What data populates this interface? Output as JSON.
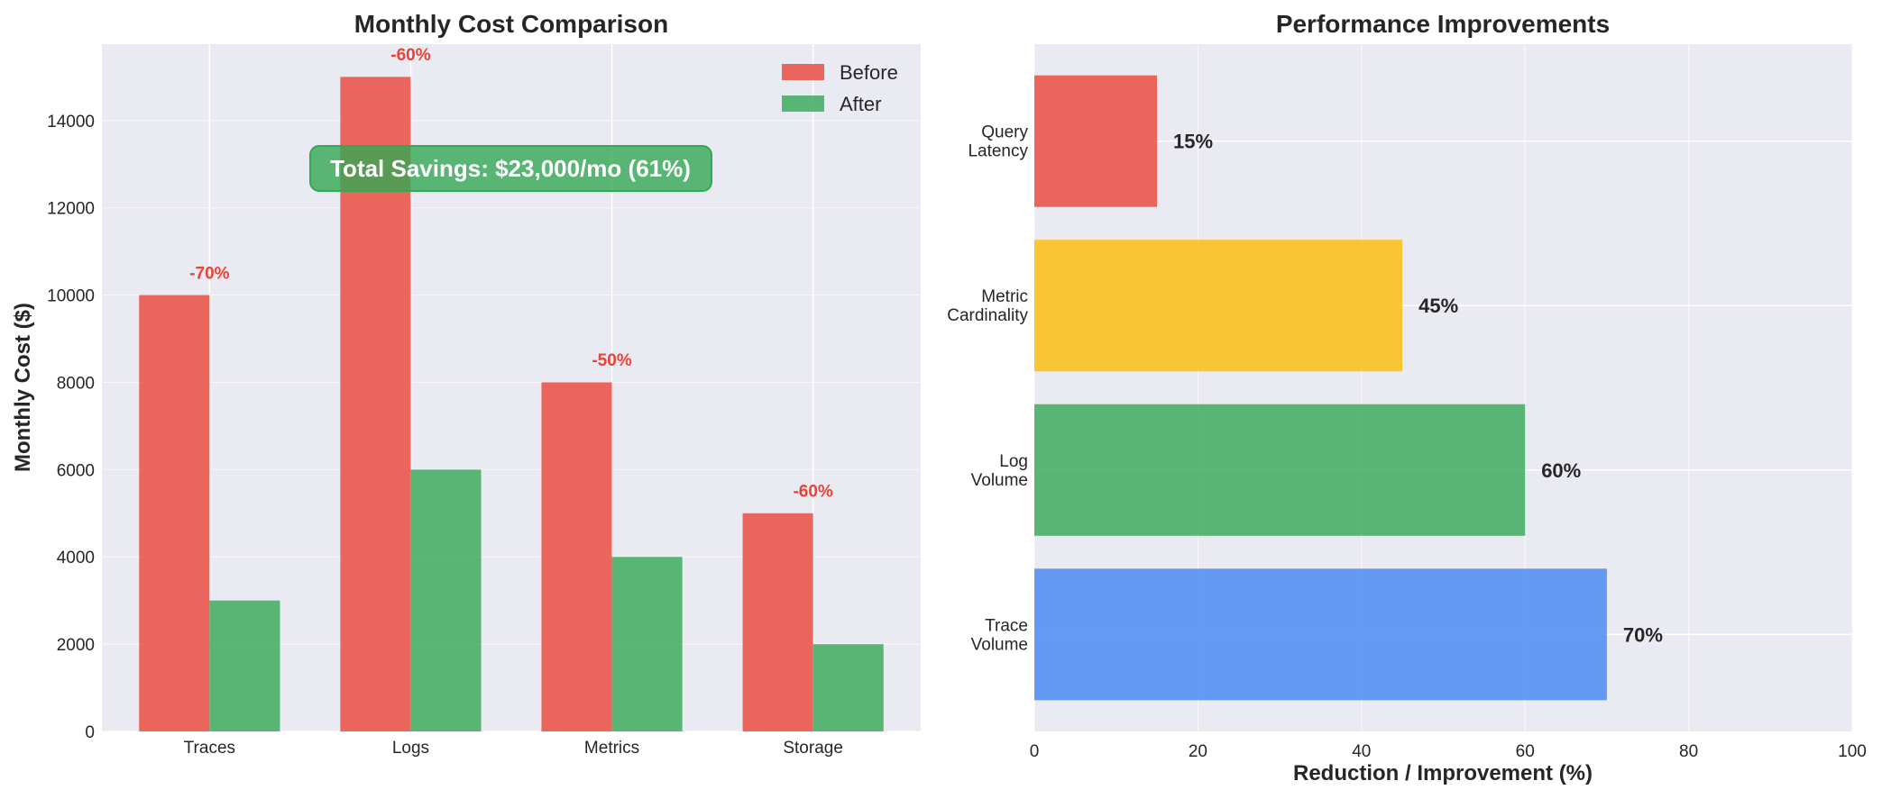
{
  "chart_data": [
    {
      "type": "bar",
      "title": "Monthly Cost Comparison",
      "xlabel": "",
      "ylabel": "Monthly Cost ($)",
      "categories": [
        "Traces",
        "Logs",
        "Metrics",
        "Storage"
      ],
      "series": [
        {
          "name": "Before",
          "values": [
            10000,
            15000,
            8000,
            5000
          ],
          "color": "#ea4335"
        },
        {
          "name": "After",
          "values": [
            3000,
            6000,
            4000,
            2000
          ],
          "color": "#34a853"
        }
      ],
      "bar_labels": [
        "-70%",
        "-60%",
        "-50%",
        "-60%"
      ],
      "bar_label_color": "#ea4335",
      "ylim": [
        0,
        15750
      ],
      "yticks": [
        0,
        2000,
        4000,
        6000,
        8000,
        10000,
        12000,
        14000
      ],
      "grid": true,
      "legend": "top-right",
      "annotation": "Total Savings: $23,000/mo (61%)",
      "annotation_color": "#34a853"
    },
    {
      "type": "bar",
      "orientation": "horizontal",
      "title": "Performance Improvements",
      "xlabel": "Reduction / Improvement (%)",
      "ylabel": "",
      "categories": [
        [
          "Trace",
          "Volume"
        ],
        [
          "Log",
          "Volume"
        ],
        [
          "Metric",
          "Cardinality"
        ],
        [
          "Query",
          "Latency"
        ]
      ],
      "values": [
        70,
        60,
        45,
        15
      ],
      "value_labels": [
        "70%",
        "60%",
        "45%",
        "15%"
      ],
      "colors": [
        "#4285f4",
        "#34a853",
        "#fbbc04",
        "#ea4335"
      ],
      "xlim": [
        0,
        100
      ],
      "xticks": [
        0,
        20,
        40,
        60,
        80,
        100
      ],
      "grid": true
    }
  ]
}
